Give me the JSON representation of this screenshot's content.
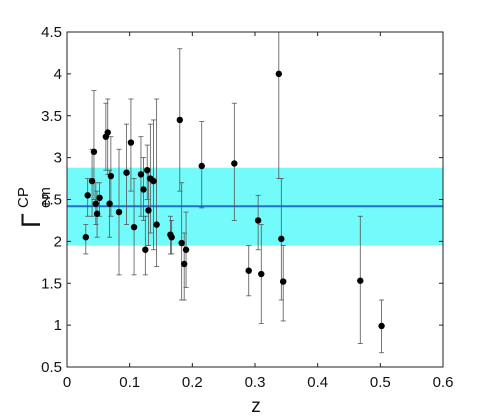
{
  "chart_data": {
    "type": "scatter",
    "xlabel": "z",
    "ylabel": {
      "main": "Γ",
      "sup": "CP",
      "sub": "em"
    },
    "xlim": [
      0,
      0.6
    ],
    "ylim": [
      0.5,
      4.5
    ],
    "xticks": [
      0,
      0.1,
      0.2,
      0.3,
      0.4,
      0.5,
      0.6
    ],
    "xtick_labels": [
      "0",
      "0.1",
      "0.2",
      "0.3",
      "0.4",
      "0.5",
      "0.6"
    ],
    "yticks": [
      0.5,
      1,
      1.5,
      2,
      2.5,
      3,
      3.5,
      4,
      4.5
    ],
    "ytick_labels": [
      "0.5",
      "1",
      "1.5",
      "2",
      "2.5",
      "3",
      "3.5",
      "4",
      "4.5"
    ],
    "grid": false,
    "mean_line": 2.42,
    "band": [
      1.95,
      2.88
    ],
    "colors": {
      "band": "#73fafa",
      "line": "#1f6fd0",
      "points": "#000000",
      "errorbars": "#555555"
    },
    "points": [
      {
        "x": 0.03,
        "y": 2.05,
        "lo": 1.85,
        "hi": 2.2
      },
      {
        "x": 0.033,
        "y": 2.55,
        "lo": 2.3,
        "hi": 2.75
      },
      {
        "x": 0.04,
        "y": 2.72,
        "lo": 2.3,
        "hi": 3.1
      },
      {
        "x": 0.043,
        "y": 3.07,
        "lo": 2.5,
        "hi": 3.8
      },
      {
        "x": 0.046,
        "y": 2.45,
        "lo": 2.2,
        "hi": 2.7
      },
      {
        "x": 0.048,
        "y": 2.33,
        "lo": 2.05,
        "hi": 2.6
      },
      {
        "x": 0.052,
        "y": 2.52,
        "lo": 2.3,
        "hi": 2.7
      },
      {
        "x": 0.062,
        "y": 3.25,
        "lo": 2.85,
        "hi": 3.65
      },
      {
        "x": 0.065,
        "y": 3.3,
        "lo": 2.8,
        "hi": 3.7
      },
      {
        "x": 0.068,
        "y": 2.45,
        "lo": 2.05,
        "hi": 2.85
      },
      {
        "x": 0.07,
        "y": 2.78,
        "lo": 2.3,
        "hi": 3.25
      },
      {
        "x": 0.083,
        "y": 2.35,
        "lo": 1.6,
        "hi": 3.1
      },
      {
        "x": 0.095,
        "y": 2.82,
        "lo": 2.2,
        "hi": 3.4
      },
      {
        "x": 0.102,
        "y": 3.18,
        "lo": 2.6,
        "hi": 3.7
      },
      {
        "x": 0.107,
        "y": 2.17,
        "lo": 1.6,
        "hi": 2.75
      },
      {
        "x": 0.118,
        "y": 2.8,
        "lo": 2.3,
        "hi": 3.25
      },
      {
        "x": 0.122,
        "y": 2.62,
        "lo": 2.25,
        "hi": 3.0
      },
      {
        "x": 0.125,
        "y": 1.9,
        "lo": 1.6,
        "hi": 2.3
      },
      {
        "x": 0.128,
        "y": 2.85,
        "lo": 2.5,
        "hi": 3.15
      },
      {
        "x": 0.13,
        "y": 2.37,
        "lo": 1.95,
        "hi": 2.85
      },
      {
        "x": 0.133,
        "y": 2.75,
        "lo": 2.1,
        "hi": 3.4
      },
      {
        "x": 0.138,
        "y": 2.72,
        "lo": 1.9,
        "hi": 3.45
      },
      {
        "x": 0.143,
        "y": 2.2,
        "lo": 1.7,
        "hi": 3.7
      },
      {
        "x": 0.165,
        "y": 2.08,
        "lo": 1.85,
        "hi": 2.3
      },
      {
        "x": 0.167,
        "y": 2.05,
        "lo": 1.85,
        "hi": 2.25
      },
      {
        "x": 0.18,
        "y": 3.45,
        "lo": 2.6,
        "hi": 4.3
      },
      {
        "x": 0.183,
        "y": 1.98,
        "lo": 1.3,
        "hi": 2.7
      },
      {
        "x": 0.187,
        "y": 1.73,
        "lo": 1.3,
        "hi": 2.1
      },
      {
        "x": 0.19,
        "y": 1.9,
        "lo": 1.45,
        "hi": 2.35
      },
      {
        "x": 0.215,
        "y": 2.9,
        "lo": 2.4,
        "hi": 3.43
      },
      {
        "x": 0.267,
        "y": 2.93,
        "lo": 2.25,
        "hi": 3.65
      },
      {
        "x": 0.29,
        "y": 1.65,
        "lo": 1.35,
        "hi": 1.95
      },
      {
        "x": 0.305,
        "y": 2.25,
        "lo": 1.9,
        "hi": 2.55
      },
      {
        "x": 0.31,
        "y": 1.61,
        "lo": 1.02,
        "hi": 2.2
      },
      {
        "x": 0.338,
        "y": 4.0,
        "lo": 2.75,
        "hi": 4.5
      },
      {
        "x": 0.342,
        "y": 2.03,
        "lo": 1.3,
        "hi": 2.75
      },
      {
        "x": 0.345,
        "y": 1.52,
        "lo": 1.05,
        "hi": 1.95
      },
      {
        "x": 0.468,
        "y": 1.53,
        "lo": 0.78,
        "hi": 2.3
      },
      {
        "x": 0.502,
        "y": 0.99,
        "lo": 0.67,
        "hi": 1.3
      }
    ]
  }
}
